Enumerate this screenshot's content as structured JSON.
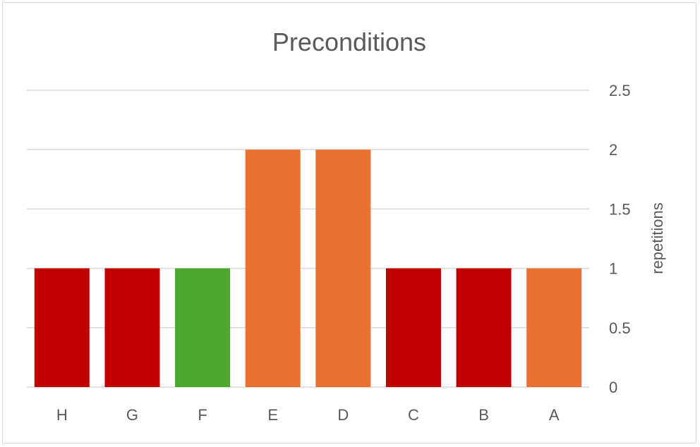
{
  "chart_data": {
    "type": "bar",
    "title": "Preconditions",
    "xlabel": "",
    "ylabel": "repetitions",
    "categories": [
      "H",
      "G",
      "F",
      "E",
      "D",
      "C",
      "B",
      "A"
    ],
    "values": [
      1,
      1,
      1,
      2,
      2,
      1,
      1,
      1
    ],
    "bar_colors": [
      "#c00000",
      "#c00000",
      "#4ea72e",
      "#e97132",
      "#e97132",
      "#c00000",
      "#c00000",
      "#e97132"
    ],
    "ylim": [
      0,
      2.5
    ],
    "yticks": [
      "0",
      "0.5",
      "1",
      "1.5",
      "2",
      "2.5"
    ],
    "y_axis_side": "right",
    "grid": true,
    "legend": "none"
  }
}
